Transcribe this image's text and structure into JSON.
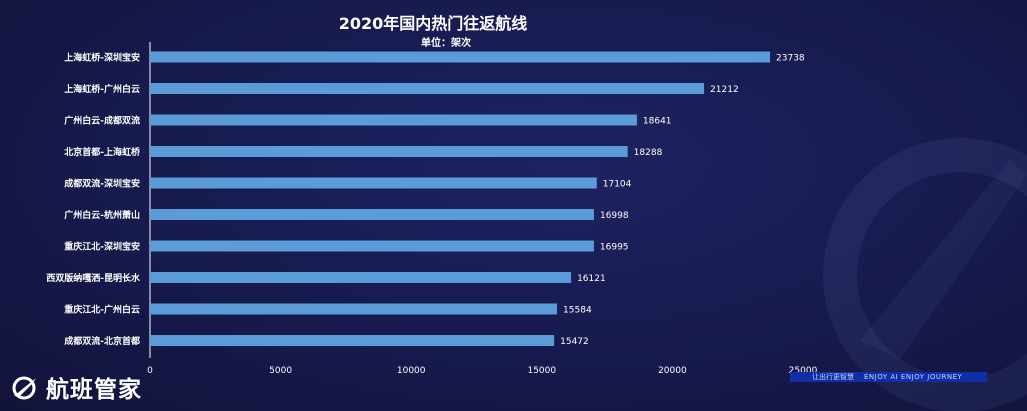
{
  "chart_data": {
    "type": "bar",
    "orientation": "horizontal",
    "title": "2020年国内热门往返航线",
    "subtitle": "单位：架次",
    "categories": [
      "上海虹桥-深圳宝安",
      "上海虹桥-广州白云",
      "广州白云-成都双流",
      "北京首都-上海虹桥",
      "成都双流-深圳宝安",
      "广州白云-杭州萧山",
      "重庆江北-深圳宝安",
      "西双版纳嘎洒-昆明长水",
      "重庆江北-广州白云",
      "成都双流-北京首都"
    ],
    "values": [
      23738,
      21212,
      18641,
      18288,
      17104,
      16998,
      16995,
      16121,
      15584,
      15472
    ],
    "xlim": [
      0,
      25000
    ],
    "xticks": [
      "0",
      "5000",
      "10000",
      "15000",
      "20000",
      "25000"
    ],
    "data_labels": true,
    "grid": false,
    "legend": "none",
    "bar_color": "#5b9bd8"
  },
  "branding": {
    "logo_text": "航班管家",
    "slogan_cn": "让出行更智慧",
    "slogan_en": "ENJOY AI  ENJOY JOURNEY"
  },
  "colors": {
    "background": "#171a4d",
    "accent": "#0f2fa8",
    "text": "#ffffff"
  }
}
